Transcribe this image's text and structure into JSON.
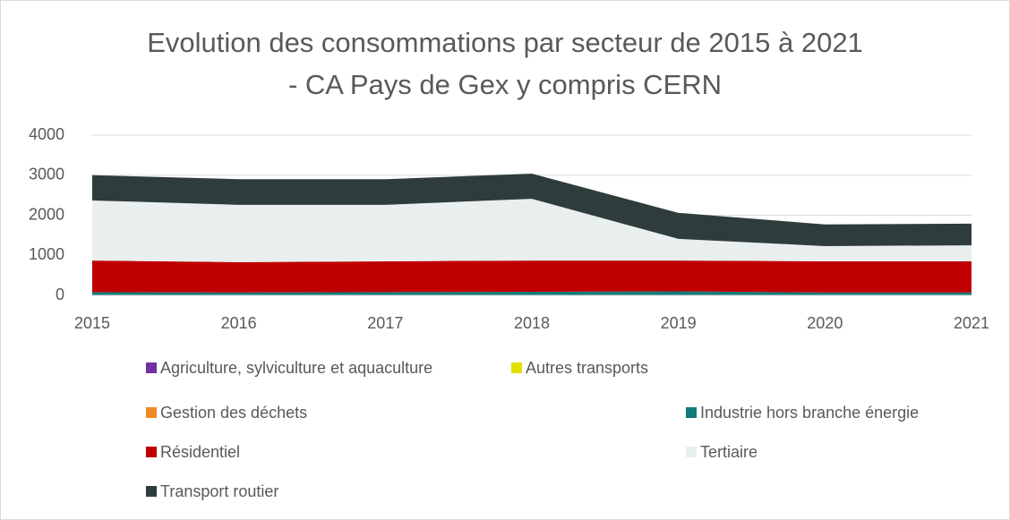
{
  "chart_data": {
    "type": "stacked_area",
    "title": [
      "Evolution des consommations par secteur de 2015 à 2021",
      "- CA Pays de Gex y compris CERN"
    ],
    "categories": [
      "2015",
      "2016",
      "2017",
      "2018",
      "2019",
      "2020",
      "2021"
    ],
    "series": [
      {
        "name": "Agriculture, sylviculture et aquaculture",
        "color": "#7030a0",
        "values": [
          5,
          5,
          5,
          5,
          5,
          5,
          5
        ]
      },
      {
        "name": "Autres transports",
        "color": "#e2e200",
        "values": [
          2,
          2,
          2,
          2,
          2,
          2,
          2
        ]
      },
      {
        "name": "Gestion des déchets",
        "color": "#f08a24",
        "values": [
          3,
          3,
          3,
          3,
          3,
          3,
          3
        ]
      },
      {
        "name": "Industrie hors branche énergie",
        "color": "#117a7a",
        "values": [
          70,
          60,
          70,
          80,
          90,
          60,
          60
        ]
      },
      {
        "name": "Résidentiel",
        "color": "#c00000",
        "values": [
          790,
          760,
          770,
          780,
          770,
          780,
          780
        ]
      },
      {
        "name": "Tertiaire",
        "color": "#e9efee",
        "values": [
          1500,
          1430,
          1410,
          1540,
          540,
          380,
          400
        ]
      },
      {
        "name": "Transport routier",
        "color": "#2e3c3c",
        "values": [
          630,
          640,
          640,
          630,
          650,
          540,
          540
        ]
      }
    ],
    "ylim": [
      0,
      4000
    ],
    "yticks": [
      0,
      1000,
      2000,
      3000,
      4000
    ],
    "grid": true,
    "legend": "bottom"
  }
}
